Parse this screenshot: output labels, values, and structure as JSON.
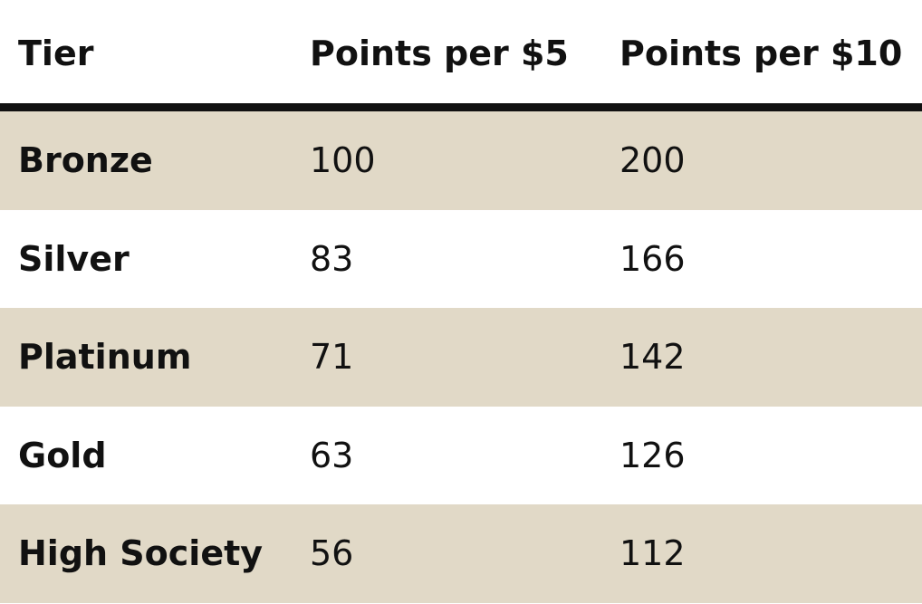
{
  "table": {
    "header": [
      "Tier",
      "Points per $5",
      "Points per $10"
    ],
    "rows": [
      [
        "Bronze",
        100,
        200
      ],
      [
        "Silver",
        83,
        166
      ],
      [
        "Platinum",
        71,
        142
      ],
      [
        "Gold",
        63,
        126
      ],
      [
        "High Society",
        56,
        112
      ]
    ]
  }
}
